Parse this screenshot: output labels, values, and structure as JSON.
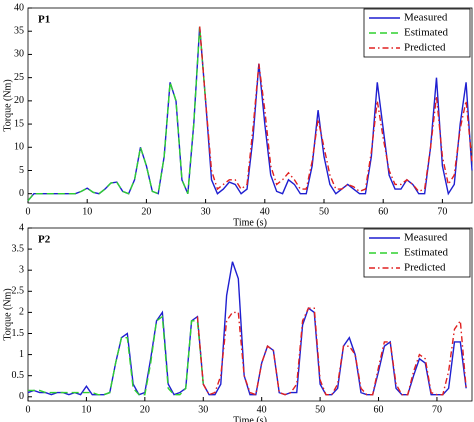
{
  "chart_data": [
    {
      "type": "line",
      "title": "P1",
      "x_label": "Time (s)",
      "y_label": "Torque (Nm)",
      "x": [
        0,
        1,
        2,
        3,
        4,
        5,
        6,
        7,
        8,
        9,
        10,
        11,
        12,
        13,
        14,
        15,
        16,
        17,
        18,
        19,
        20,
        21,
        22,
        23,
        24,
        25,
        26,
        27,
        28,
        29,
        30,
        31,
        32,
        33,
        34,
        35,
        36,
        37,
        38,
        39,
        40,
        41,
        42,
        43,
        44,
        45,
        46,
        47,
        48,
        49,
        50,
        51,
        52,
        53,
        54,
        55,
        56,
        57,
        58,
        59,
        60,
        61,
        62,
        63,
        64,
        65,
        66,
        67,
        68,
        69,
        70,
        71,
        72,
        73,
        74,
        75
      ],
      "xlim": [
        0,
        75
      ],
      "xticks": [
        0,
        10,
        20,
        30,
        40,
        50,
        60,
        70
      ],
      "ylim": [
        -2,
        40
      ],
      "yticks": [
        0,
        5,
        10,
        15,
        20,
        25,
        30,
        35,
        40
      ],
      "legend": "upper right",
      "series": [
        {
          "name": "Measured",
          "color": "#1f1fd0",
          "linestyle": "solid",
          "values": [
            -1.5,
            0,
            0,
            0,
            0,
            0,
            0,
            0,
            0,
            0.5,
            1.2,
            0.3,
            0,
            1,
            2.3,
            2.5,
            0.5,
            0,
            3,
            10,
            6,
            0.5,
            0,
            8,
            24,
            20,
            3,
            0,
            15,
            36,
            20,
            3,
            0,
            1,
            2.5,
            2,
            0,
            1,
            12,
            28,
            15,
            4,
            0.5,
            0,
            3,
            2,
            0,
            0,
            6,
            18,
            8,
            2,
            0,
            1,
            2,
            1,
            0,
            0,
            8,
            24,
            14,
            4,
            1,
            1,
            3,
            2,
            0,
            0,
            10,
            25,
            6,
            0,
            2,
            15,
            24,
            5
          ]
        },
        {
          "name": "Estimated",
          "color": "#2fd02f",
          "linestyle": "dashed",
          "values": [
            -1.5,
            0,
            0,
            0,
            0,
            0,
            0,
            0,
            0,
            0.5,
            1.2,
            0.3,
            0,
            1,
            2.3,
            2.5,
            0.5,
            0,
            3,
            10,
            6,
            0.5,
            0,
            8,
            24,
            20,
            3,
            0,
            15,
            36,
            20,
            null,
            null,
            null,
            null,
            null,
            null,
            null,
            null,
            null,
            null,
            null,
            null,
            null,
            null,
            null,
            null,
            null,
            null,
            null,
            null,
            null,
            null,
            null,
            null,
            null,
            null,
            null,
            null,
            null,
            null,
            null,
            null,
            null,
            null,
            null,
            null,
            null,
            null,
            null,
            null,
            null,
            null,
            null,
            null,
            null
          ]
        },
        {
          "name": "Predicted",
          "color": "#e02020",
          "linestyle": "dashdot",
          "values": [
            null,
            null,
            null,
            null,
            null,
            null,
            null,
            null,
            null,
            null,
            null,
            null,
            null,
            null,
            null,
            null,
            null,
            null,
            null,
            null,
            null,
            null,
            null,
            null,
            null,
            null,
            null,
            null,
            null,
            36,
            20,
            5,
            1,
            2,
            3,
            3,
            1,
            2,
            14,
            28,
            18,
            6,
            2,
            3,
            4.5,
            3,
            1,
            1,
            7,
            16,
            10,
            4,
            1,
            1,
            2,
            1.5,
            0.5,
            1,
            9,
            20,
            12,
            5,
            2,
            2,
            3,
            2,
            0.5,
            1,
            10,
            21,
            8,
            2,
            4,
            14,
            20,
            7
          ]
        }
      ]
    },
    {
      "type": "line",
      "title": "P2",
      "x_label": "Time (s)",
      "y_label": "Torque (Nm)",
      "x": [
        0,
        1,
        2,
        3,
        4,
        5,
        6,
        7,
        8,
        9,
        10,
        11,
        12,
        13,
        14,
        15,
        16,
        17,
        18,
        19,
        20,
        21,
        22,
        23,
        24,
        25,
        26,
        27,
        28,
        29,
        30,
        31,
        32,
        33,
        34,
        35,
        36,
        37,
        38,
        39,
        40,
        41,
        42,
        43,
        44,
        45,
        46,
        47,
        48,
        49,
        50,
        51,
        52,
        53,
        54,
        55,
        56,
        57,
        58,
        59,
        60,
        61,
        62,
        63,
        64,
        65,
        66,
        67,
        68,
        69,
        70,
        71,
        72,
        73,
        74,
        75
      ],
      "xlim": [
        0,
        76
      ],
      "xticks": [
        0,
        10,
        20,
        30,
        40,
        50,
        60,
        70
      ],
      "ylim": [
        -0.1,
        4
      ],
      "yticks": [
        0,
        0.5,
        1,
        1.5,
        2,
        2.5,
        3,
        3.5,
        4
      ],
      "legend": "upper right",
      "series": [
        {
          "name": "Measured",
          "color": "#1f1fd0",
          "linestyle": "solid",
          "values": [
            0.1,
            0.15,
            0.1,
            0.1,
            0.05,
            0.1,
            0.1,
            0.05,
            0.1,
            0.05,
            0.25,
            0.05,
            0.05,
            0.05,
            0.1,
            0.8,
            1.4,
            1.5,
            0.3,
            0.05,
            0.1,
            0.9,
            1.8,
            2,
            0.3,
            0.05,
            0.1,
            0.2,
            1.8,
            1.9,
            0.3,
            0.05,
            0.05,
            0.3,
            2.4,
            3.2,
            2.8,
            0.5,
            0.05,
            0.05,
            0.8,
            1.2,
            1.1,
            0.1,
            0.05,
            0.1,
            0.1,
            1.7,
            2.1,
            2,
            0.3,
            0.05,
            0.05,
            0.2,
            1.2,
            1.4,
            1,
            0.1,
            0.05,
            0.05,
            0.6,
            1.2,
            1.3,
            0.2,
            0.05,
            0.05,
            0.5,
            0.9,
            0.8,
            0.05,
            0.05,
            0.05,
            0.2,
            1.3,
            1.3,
            0.2
          ]
        },
        {
          "name": "Estimated",
          "color": "#2fd02f",
          "linestyle": "dashed",
          "values": [
            0.15,
            0.15,
            0.15,
            0.1,
            0.1,
            0.1,
            0.1,
            0.1,
            0.1,
            0.1,
            0.1,
            0.1,
            0.05,
            0.05,
            0.1,
            0.8,
            1.4,
            1.4,
            0.2,
            0.05,
            0.05,
            0.8,
            1.8,
            1.9,
            0.2,
            0.05,
            0.05,
            0.2,
            1.8,
            1.8,
            0.3,
            null,
            null,
            null,
            null,
            null,
            null,
            null,
            null,
            null,
            null,
            null,
            null,
            null,
            null,
            null,
            null,
            null,
            null,
            null,
            null,
            null,
            null,
            null,
            null,
            null,
            null,
            null,
            null,
            null,
            null,
            null,
            null,
            null,
            null,
            null,
            null,
            null,
            null,
            null,
            null,
            null,
            null,
            null,
            null,
            null
          ]
        },
        {
          "name": "Predicted",
          "color": "#e02020",
          "linestyle": "dashdot",
          "values": [
            null,
            null,
            null,
            null,
            null,
            null,
            null,
            null,
            null,
            null,
            null,
            null,
            null,
            null,
            null,
            null,
            null,
            null,
            null,
            null,
            null,
            null,
            null,
            null,
            null,
            null,
            null,
            null,
            null,
            1.9,
            0.3,
            0.05,
            0.1,
            0.5,
            1.8,
            2,
            2,
            0.5,
            0.1,
            0.05,
            0.8,
            1.2,
            1.1,
            0.1,
            0.05,
            0.1,
            0.3,
            1.8,
            2.1,
            2.1,
            0.4,
            0.05,
            0.05,
            0.3,
            1.2,
            1.2,
            1,
            0.2,
            0.05,
            0.05,
            0.7,
            1.3,
            1.3,
            0.3,
            0.05,
            0.05,
            0.6,
            1,
            0.9,
            0.1,
            0.05,
            0.05,
            0.6,
            1.6,
            1.8,
            0.2
          ]
        }
      ]
    }
  ]
}
